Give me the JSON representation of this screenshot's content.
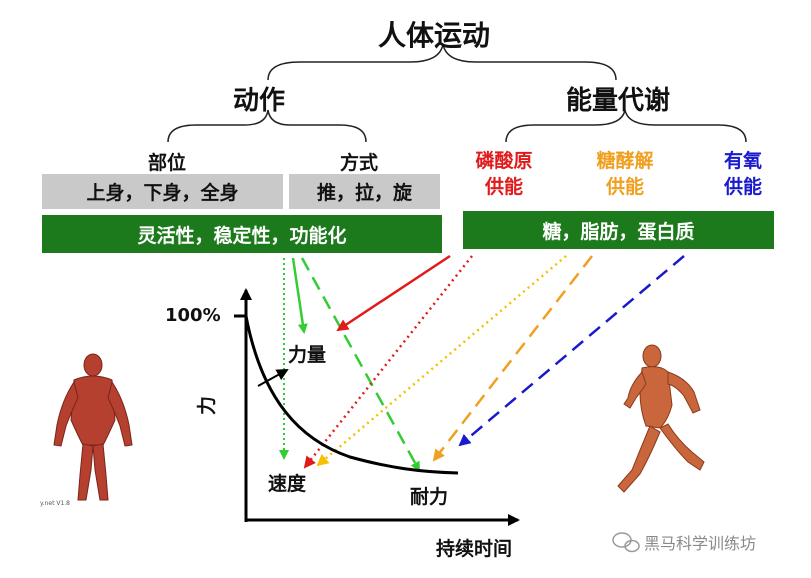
{
  "title": "人体运动",
  "branches": {
    "left": "动作",
    "right": "能量代谢"
  },
  "action": {
    "site_label": "部位",
    "method_label": "方式",
    "site_values": "上身，下身，全身",
    "method_values": "推，拉，旋",
    "qualities": "灵活性，稳定性，功能化"
  },
  "energy": {
    "phosphagen": "磷酸原\n供能",
    "glycolytic": "糖酵解\n供能",
    "aerobic": "有氧\n供能",
    "substrates": "糖，脂肪，蛋白质"
  },
  "graph": {
    "y_max_label": "100%",
    "y_axis_label": "力",
    "x_axis_label": "持续时间",
    "strength_label": "力量",
    "speed_label": "速度",
    "endurance_label": "耐力"
  },
  "figure_caption": "y.net V1.8",
  "watermark": "黑马科学训练坊",
  "colors": {
    "green_box": "#1c7a1c",
    "gray_box": "#c9c9c9",
    "phosphagen": "#e01b1b",
    "glycolytic": "#f0a020",
    "aerobic": "#1a1acc",
    "motion_arrows": "#33cc33"
  }
}
